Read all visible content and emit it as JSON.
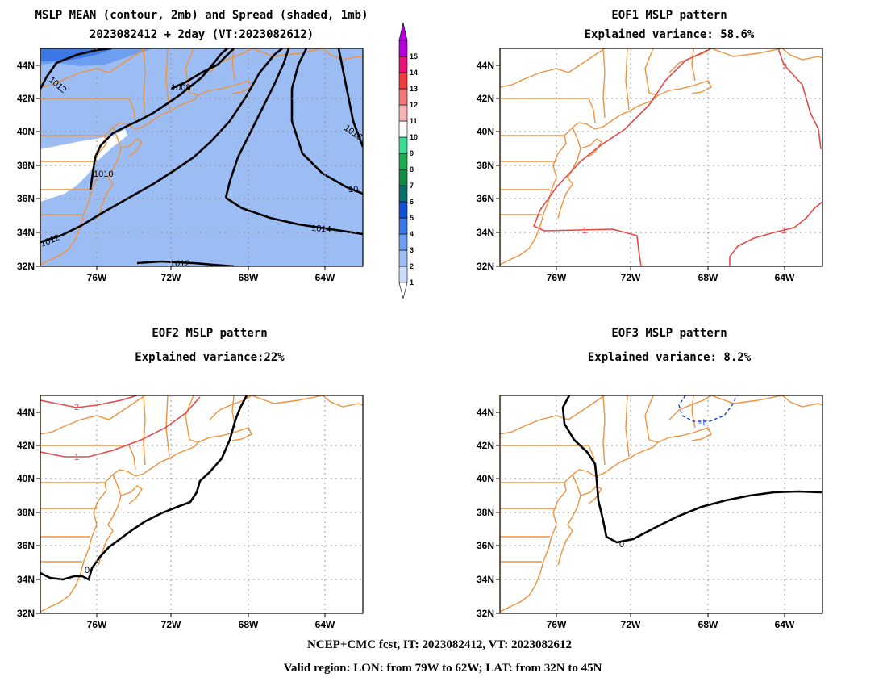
{
  "panels": [
    {
      "id": "mean",
      "title1": "MSLP MEAN (contour, 2mb) and Spread (shaded, 1mb)",
      "title2": "2023082412 + 2day (VT:2023082612)"
    },
    {
      "id": "eof1",
      "title1": "EOF1 MSLP pattern",
      "title2": "Explained variance: 58.6%"
    },
    {
      "id": "eof2",
      "title1": "EOF2 MSLP pattern",
      "title2": "Explained variance:22%"
    },
    {
      "id": "eof3",
      "title1": "EOF3 MSLP pattern",
      "title2": "Explained variance: 8.2%"
    }
  ],
  "axes": {
    "lon_labels": [
      "76W",
      "72W",
      "68W",
      "64W"
    ],
    "lat_labels": [
      "44N",
      "42N",
      "40N",
      "38N",
      "36N",
      "34N",
      "32N"
    ]
  },
  "colorbar": {
    "levels": [
      "1",
      "2",
      "3",
      "4",
      "5",
      "6",
      "7",
      "8",
      "9",
      "10",
      "11",
      "12",
      "13",
      "14",
      "15"
    ],
    "colors": [
      "#c8dcfa",
      "#9cbcf4",
      "#6e9ef0",
      "#3c78e6",
      "#1450d2",
      "#0a6e6e",
      "#148c46",
      "#1eaa50",
      "#3cdc96",
      "#fafafa",
      "#f8b4b4",
      "#f07878",
      "#f03c3c",
      "#e61478",
      "#b400dc"
    ]
  },
  "contour_labels": {
    "mean": [
      "1012",
      "1008",
      "1010",
      "1016",
      "10",
      "1014",
      "1012",
      "1012"
    ],
    "eof1": [
      "2",
      "1",
      "1"
    ],
    "eof2": [
      "2",
      "1",
      "0"
    ],
    "eof3": [
      "-1",
      "0"
    ]
  },
  "colors": {
    "coast": "#f0923c",
    "mean_contour": "#000000",
    "positive": "#e84848",
    "negative": "#2040e0"
  },
  "footer": {
    "line1": "NCEP+CMC fcst, IT: 2023082412, VT: 2023082612",
    "line2": "Valid region: LON: from 79W to 62W; LAT: from 32N to 45N"
  }
}
